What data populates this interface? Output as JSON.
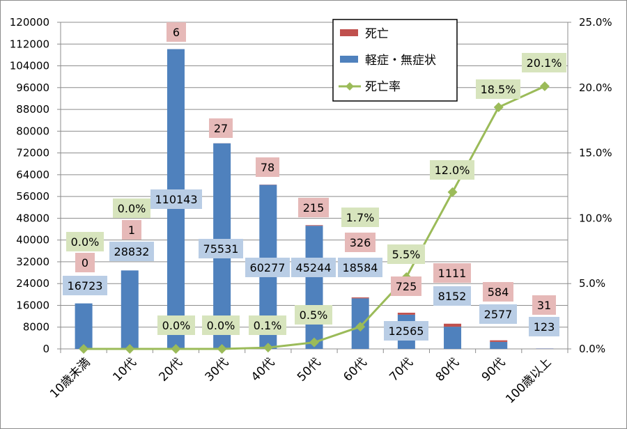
{
  "chart_data": {
    "type": "bar",
    "stacked": true,
    "categories": [
      "10歳未満",
      "10代",
      "20代",
      "30代",
      "40代",
      "50代",
      "60代",
      "70代",
      "80代",
      "90代",
      "100歳以上"
    ],
    "series": [
      {
        "name": "軽症・無症状",
        "type": "bar",
        "axis": "left",
        "color": "#4f81bd",
        "values": [
          16723,
          28832,
          110143,
          75531,
          60277,
          45244,
          18584,
          12565,
          8152,
          2577,
          123
        ],
        "label_bg": "#b9cde5"
      },
      {
        "name": "死亡",
        "type": "bar",
        "axis": "left",
        "color": "#c0504d",
        "values": [
          0,
          1,
          6,
          27,
          78,
          215,
          326,
          725,
          1111,
          584,
          31
        ],
        "label_bg": "#e6b9b8"
      },
      {
        "name": "死亡率",
        "type": "line",
        "axis": "right",
        "color": "#9bbb59",
        "values": [
          0.0,
          0.0,
          0.0,
          0.0,
          0.1,
          0.5,
          1.7,
          5.5,
          12.0,
          18.5,
          20.1
        ],
        "labels": [
          "0.0%",
          "0.0%",
          "0.0%",
          "0.0%",
          "0.1%",
          "0.5%",
          "1.7%",
          "5.5%",
          "12.0%",
          "18.5%",
          "20.1%"
        ],
        "label_bg": "#d7e4bd"
      }
    ],
    "y_left": {
      "ylim": [
        0,
        120000
      ],
      "ticks": [
        "0",
        "8000",
        "16000",
        "24000",
        "32000",
        "40000",
        "48000",
        "56000",
        "64000",
        "72000",
        "80000",
        "88000",
        "96000",
        "104000",
        "112000",
        "120000"
      ]
    },
    "y_right": {
      "ylim": [
        0,
        25
      ],
      "ticks": [
        "0.0%",
        "5.0%",
        "10.0%",
        "15.0%",
        "20.0%",
        "25.0%"
      ]
    },
    "grid": true,
    "legend": {
      "position": "top-right",
      "entries": [
        {
          "label": "死亡",
          "marker": "bar",
          "color": "#c0504d"
        },
        {
          "label": "軽症・無症状",
          "marker": "bar",
          "color": "#4f81bd"
        },
        {
          "label": "死亡率",
          "marker": "line-diamond",
          "color": "#9bbb59"
        }
      ]
    }
  }
}
